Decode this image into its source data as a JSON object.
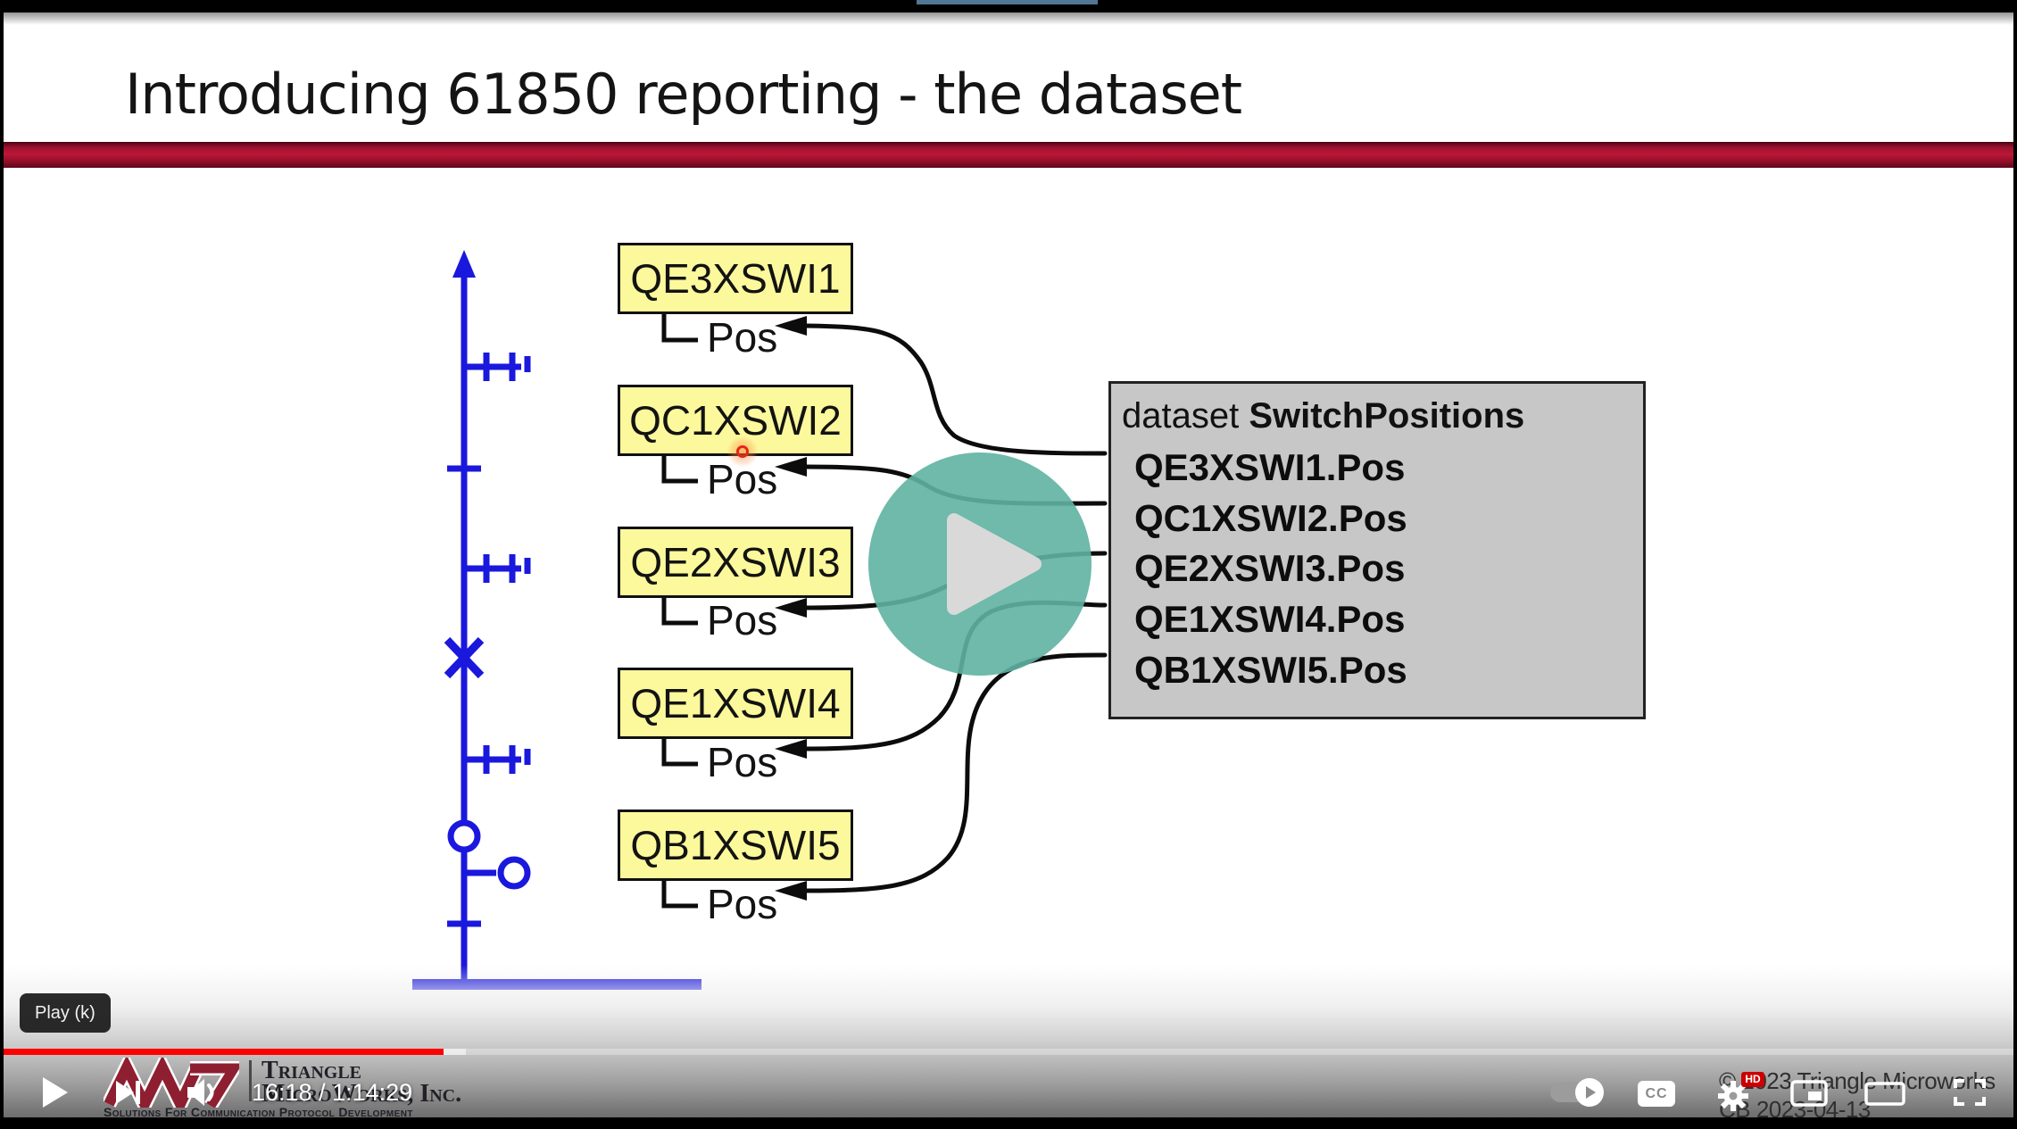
{
  "browser": {
    "tab_accent_color": "#527695"
  },
  "slide": {
    "title": "Introducing 61850 reporting - the dataset",
    "devices": [
      {
        "name": "QE3XSWI1",
        "attribute": "Pos"
      },
      {
        "name": "QC1XSWI2",
        "attribute": "Pos"
      },
      {
        "name": "QE2XSWI3",
        "attribute": "Pos"
      },
      {
        "name": "QE1XSWI4",
        "attribute": "Pos"
      },
      {
        "name": "QB1XSWI5",
        "attribute": "Pos"
      }
    ],
    "dataset_box": {
      "label_prefix": "dataset ",
      "name": "SwitchPositions",
      "members": [
        "QE3XSWI1.Pos",
        "QC1XSWI2.Pos",
        "QE2XSWI3.Pos",
        "QE1XSWI4.Pos",
        "QB1XSWI5.Pos"
      ]
    },
    "watermark": {
      "brand_line1": "Triangle",
      "brand_line2": "MicroWorks, Inc.",
      "tagline": "Solutions For Communication Protocol Development",
      "copyright_line1": "© 2023 Triangle Microworks",
      "copyright_line2": "CB 2023-04-13"
    },
    "colors": {
      "device_box_fill": "#fcf99c",
      "diagram_blue": "#1a18dd",
      "dataset_box_fill": "#c7c7c7",
      "header_band_red": "#a01130"
    }
  },
  "player": {
    "tooltip": "Play (k)",
    "current_time": "16:18",
    "time_separator": " / ",
    "duration": "1:14:29",
    "cc_label": "CC",
    "hd_badge": "HD",
    "progress_percent": 21.9,
    "icons": [
      "play-icon",
      "next-icon",
      "volume-icon",
      "autoplay-toggle",
      "captions-icon",
      "settings-gear-icon",
      "miniplayer-icon",
      "theater-mode-icon",
      "fullscreen-icon"
    ],
    "colors": {
      "progress_red": "#ff0000",
      "play_overlay_teal": "#5fb3a1"
    }
  }
}
